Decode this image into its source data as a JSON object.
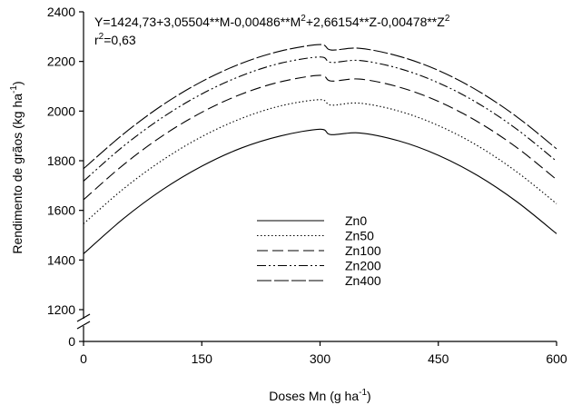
{
  "chart_data": {
    "type": "line",
    "xlabel": "Doses Mn (g ha",
    "xlabel_sup": "-1",
    "xlabel_end": ")",
    "ylabel": "Rendimento de grãos (kg ha",
    "ylabel_sup": "-1",
    "ylabel_end": ")",
    "equation_parts": [
      {
        "t": "Y=1424,73+3,05504**M-0,00486**M",
        "sup": false
      },
      {
        "t": "2",
        "sup": true
      },
      {
        "t": "+2,66154**Z-0,00478**Z",
        "sup": false
      },
      {
        "t": "2",
        "sup": true
      }
    ],
    "r2_parts": [
      {
        "t": "r",
        "sup": false
      },
      {
        "t": "2",
        "sup": true
      },
      {
        "t": "=0,63",
        "sup": false
      }
    ],
    "xlim": [
      0,
      600
    ],
    "ylim": [
      1200,
      2400
    ],
    "axis_break": true,
    "x_ticks": [
      "0",
      "150",
      "300",
      "450",
      "600"
    ],
    "y_ticks": [
      "0",
      "1200",
      "1400",
      "1600",
      "1800",
      "2000",
      "2200",
      "2400"
    ],
    "grid": false,
    "legend_position": "center",
    "x": [
      0,
      50,
      100,
      150,
      200,
      250,
      300,
      314,
      350,
      400,
      450,
      500,
      550,
      600
    ],
    "series": [
      {
        "name": "Zn0",
        "dash": "solid",
        "values": [
          1425,
          1565,
          1683,
          1778,
          1851,
          1900,
          1927,
          1905,
          1912,
          1880,
          1822,
          1740,
          1634,
          1506
        ]
      },
      {
        "name": "Zn50",
        "dash": "dotted",
        "values": [
          1546,
          1685,
          1802,
          1897,
          1970,
          2021,
          2046,
          2024,
          2032,
          2000,
          1942,
          1860,
          1754,
          1627
        ]
      },
      {
        "name": "Zn100",
        "dash": "dash",
        "values": [
          1643,
          1782,
          1900,
          1995,
          2068,
          2118,
          2144,
          2121,
          2129,
          2097,
          2039,
          1957,
          1852,
          1724
        ]
      },
      {
        "name": "Zn200",
        "dash": "dashdotdot",
        "values": [
          1718,
          1857,
          1974,
          2069,
          2142,
          2193,
          2218,
          2196,
          2204,
          2172,
          2114,
          2032,
          1926,
          1798
        ]
      },
      {
        "name": "Zn400",
        "dash": "longdash",
        "values": [
          1768,
          1906,
          2024,
          2119,
          2192,
          2242,
          2268,
          2246,
          2253,
          2221,
          2164,
          2082,
          1976,
          1848
        ]
      }
    ]
  }
}
